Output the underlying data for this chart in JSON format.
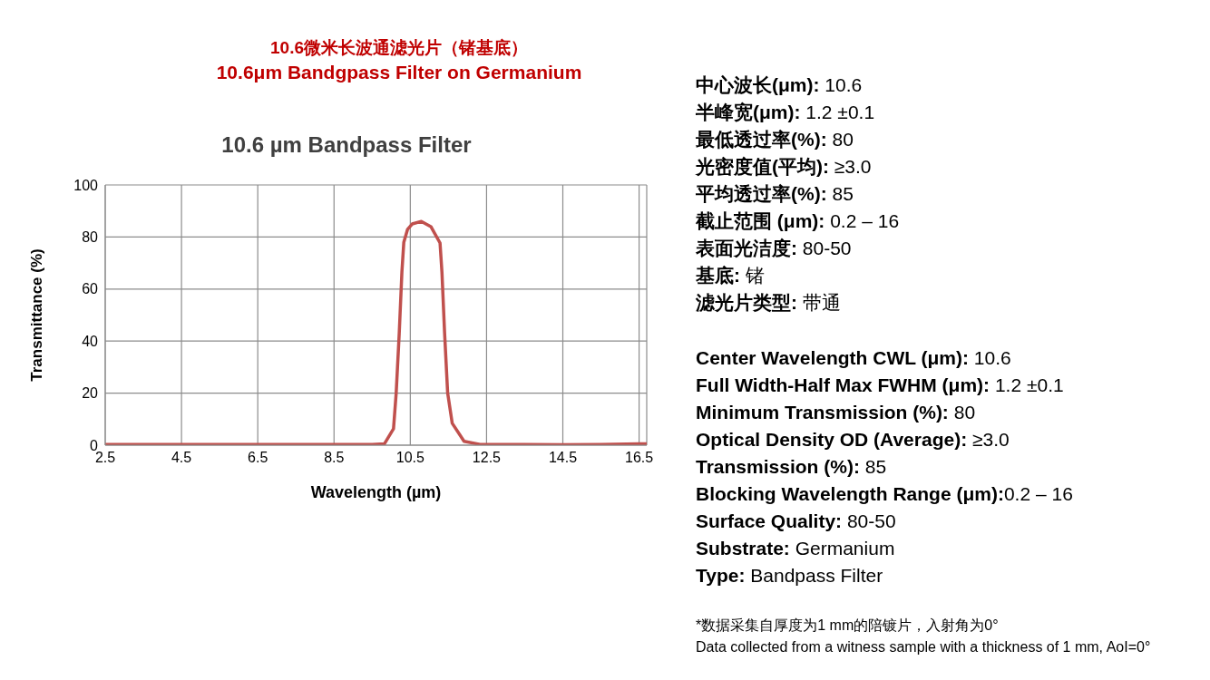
{
  "chart_data": [
    {
      "type": "other",
      "title": "10.6微米长波通滤光片（锗基底）",
      "subtitle": "10.6μm Bandgpass Filter on Germanium"
    },
    {
      "type": "line",
      "title": "10.6 µm Bandpass Filter",
      "xlabel": "Wavelength (µm)",
      "ylabel": "Transmittance (%)",
      "xlim": [
        2.5,
        16.7
      ],
      "xticks": [
        2.5,
        4.5,
        6.5,
        8.5,
        10.5,
        12.5,
        14.5,
        16.5
      ],
      "ylim": [
        0,
        100
      ],
      "yticks": [
        0,
        20,
        40,
        60,
        80,
        100
      ],
      "grid": true,
      "marker": "none",
      "line_style": "solid",
      "series": [
        {
          "color": "#c0504d",
          "x": [
            2.5,
            4.5,
            6.5,
            8.5,
            9.5,
            9.82,
            10.06,
            10.13,
            10.21,
            10.28,
            10.33,
            10.43,
            10.55,
            10.79,
            11.04,
            11.28,
            11.33,
            11.4,
            11.48,
            11.6,
            11.91,
            12.33,
            13.5,
            14.5,
            15.5,
            16.5,
            16.7
          ],
          "values": [
            0.3,
            0.3,
            0.3,
            0.3,
            0.3,
            0.5,
            6.3,
            20,
            43,
            66.5,
            78,
            83,
            85,
            86,
            84,
            77.7,
            66.5,
            43,
            20,
            8.4,
            1.5,
            0.3,
            0.3,
            0.2,
            0.3,
            0.5,
            0.5
          ]
        }
      ]
    },
    {
      "type": "other",
      "annotations": [
        "中心波长(μm): 10.6",
        "半峰宽(μm): 1.2 ±0.1",
        "最低透过率(%): 80",
        "光密度值(平均): ≥3.0",
        "平均透过率(%): 85",
        "截止范围 (μm): 0.2 – 16",
        "表面光洁度: 80-50",
        "基底: 锗",
        "滤光片类型: 带通"
      ]
    },
    {
      "type": "other",
      "annotations": [
        "Center Wavelength CWL (μm): 10.6",
        "Full Width-Half Max FWHM (μm): 1.2 ±0.1",
        "Minimum Transmission (%): 80",
        "Optical Density OD (Average): ≥3.0",
        "Transmission (%): 85",
        "Blocking Wavelength Range (μm):0.2 – 16",
        "Surface Quality: 80-50",
        "Substrate: Germanium",
        "Type: Bandpass Filter"
      ]
    },
    {
      "type": "other",
      "annotations": [
        "*数据采集自厚度为1 mm的陪镀片，入射角为0°",
        "Data collected from a witness sample with a thickness of 1 mm, AoI=0°"
      ]
    }
  ]
}
